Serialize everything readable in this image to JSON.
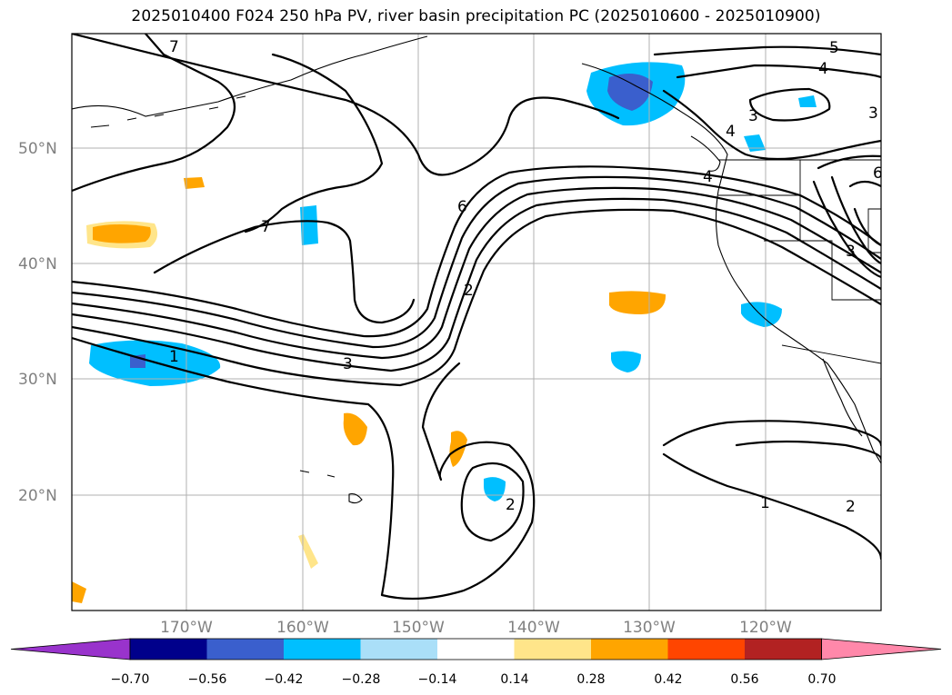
{
  "title": "2025010400 F024 250 hPa PV, river basin precipitation PC (2025010600 - 2025010900)",
  "lat_labels": [
    "50°N",
    "40°N",
    "30°N",
    "20°N"
  ],
  "lon_labels": [
    "170°W",
    "160°W",
    "150°W",
    "140°W",
    "130°W",
    "120°W"
  ],
  "contour_labels": [
    "7",
    "7",
    "6",
    "2",
    "1",
    "3",
    "2",
    "1",
    "2",
    "5",
    "4",
    "4",
    "4",
    "3",
    "3",
    "6",
    "3"
  ],
  "colorbar": {
    "tick_labels": [
      "−0.70",
      "−0.56",
      "−0.42",
      "−0.28",
      "−0.14",
      "0.14",
      "0.28",
      "0.42",
      "0.56",
      "0.70"
    ],
    "colors": [
      "#9933cc",
      "#00008b",
      "#3a5fcd",
      "#00bfff",
      "#aadff8",
      "#ffffff",
      "#ffe58a",
      "#ffa500",
      "#ff4500",
      "#b22222",
      "#ff88aa"
    ]
  }
}
